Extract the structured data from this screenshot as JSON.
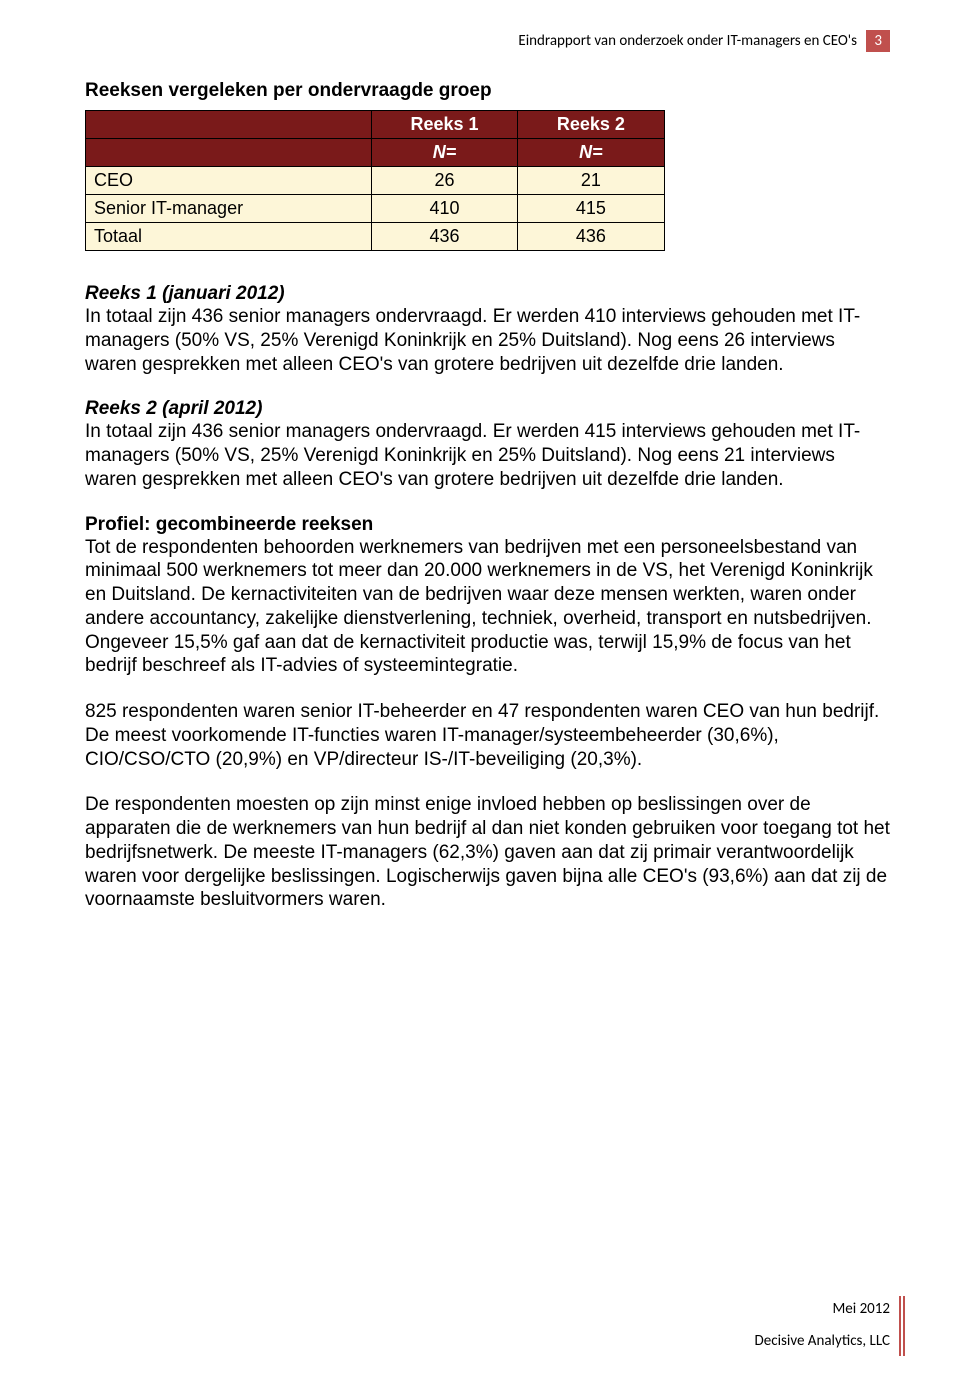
{
  "header": {
    "title": "Eindrapport van onderzoek onder IT-managers en CEO's",
    "page_number": "3"
  },
  "table": {
    "caption": "Reeksen vergeleken per ondervraagde groep",
    "col_headers": [
      "Reeks 1",
      "Reeks 2"
    ],
    "sub_headers": [
      "N=",
      "N="
    ],
    "rows": [
      {
        "label": "CEO",
        "v1": "26",
        "v2": "21"
      },
      {
        "label": "Senior IT-manager",
        "v1": "410",
        "v2": "415"
      },
      {
        "label": "Totaal",
        "v1": "436",
        "v2": "436"
      }
    ],
    "colors": {
      "header_bg": "#7a1a1a",
      "header_fg": "#ffffff",
      "row_bg": "#fdf6d8",
      "border": "#000000"
    }
  },
  "sections": {
    "reeks1_title": "Reeks 1 (januari 2012)",
    "reeks1_body": "In totaal zijn 436 senior managers ondervraagd. Er werden 410 interviews gehouden met IT-managers (50% VS, 25% Verenigd Koninkrijk en 25% Duitsland). Nog eens 26 interviews waren gesprekken met alleen CEO's van grotere bedrijven uit dezelfde drie landen.",
    "reeks2_title": "Reeks 2 (april 2012)",
    "reeks2_body": "In totaal zijn 436 senior managers ondervraagd. Er werden 415 interviews gehouden met IT-managers (50% VS, 25% Verenigd Koninkrijk en 25% Duitsland). Nog eens 21 interviews waren gesprekken met alleen CEO's van grotere bedrijven uit dezelfde drie landen.",
    "profile_title": "Profiel: gecombineerde reeksen",
    "profile_p1": "Tot de respondenten behoorden werknemers van bedrijven met een personeels­bestand van minimaal 500 werknemers tot meer dan 20.000 werknemers in de VS, het Verenigd Koninkrijk en Duitsland. De kernactiviteiten van de bedrijven waar deze mensen werkten, waren onder andere accountancy, zakelijke dienstverlening, techniek, overheid, transport en nutsbedrijven. Ongeveer 15,5% gaf aan dat de kernactiviteit productie was, terwijl 15,9% de focus van het bedrijf beschreef als IT-advies of systeemintegratie.",
    "profile_p2": "825 respondenten waren senior IT-beheerder en 47 respondenten waren CEO van hun bedrijf. De meest voorkomende IT-functies waren IT-manager/systeem­beheerder (30,6%), CIO/CSO/CTO (20,9%) en VP/directeur IS-/IT-beveiliging (20,3%).",
    "profile_p3": "De respondenten moesten op zijn minst enige invloed hebben op beslissingen over de apparaten die de werknemers van hun bedrijf al dan niet konden gebruiken voor toegang tot het bedrijfsnetwerk. De meeste IT-managers (62,3%) gaven aan dat zij primair verantwoordelijk waren voor dergelijke beslissingen. Logischerwijs gaven bijna alle CEO's (93,6%) aan dat zij de voornaamste besluitvormers waren."
  },
  "footer": {
    "date": "Mei 2012",
    "org": "Decisive Analytics, LLC"
  }
}
